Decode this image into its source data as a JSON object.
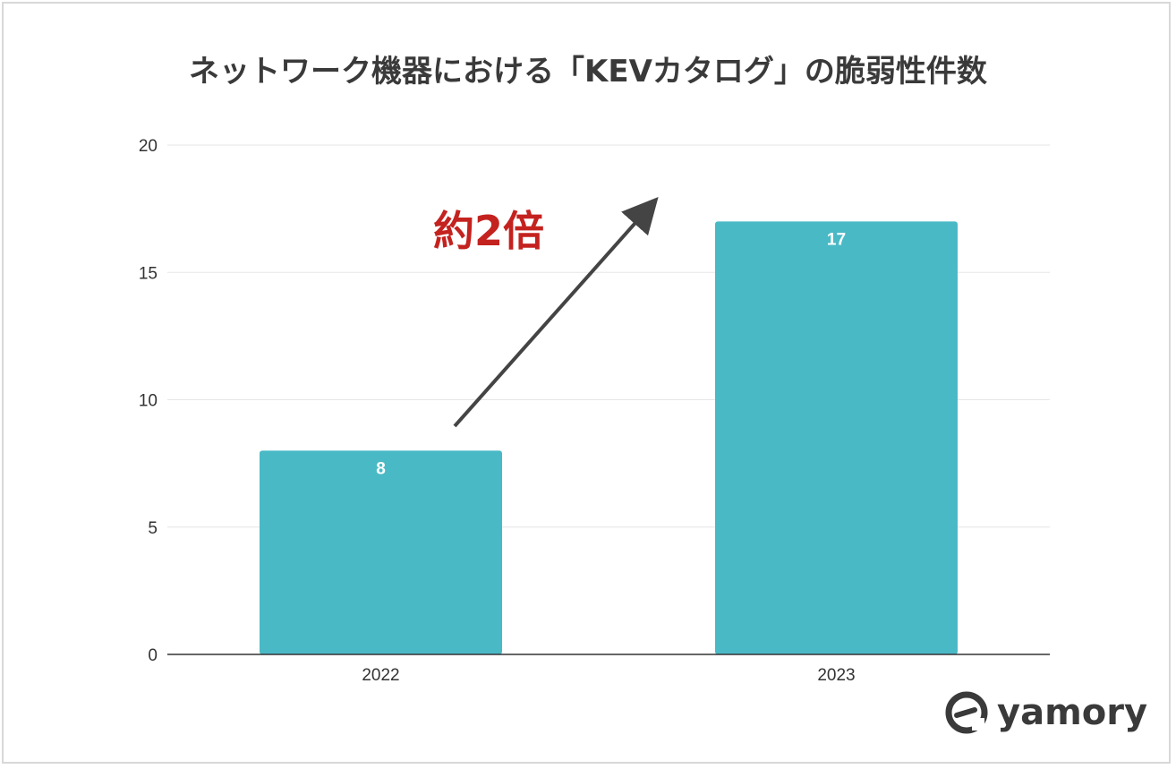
{
  "chart_data": {
    "type": "bar",
    "title": "ネットワーク機器における「KEVカタログ」の脆弱性件数",
    "categories": [
      "2022",
      "2023"
    ],
    "values": [
      8,
      17
    ],
    "ylim": [
      0,
      20
    ],
    "yticks": [
      0,
      5,
      10,
      15,
      20
    ],
    "xlabel": "",
    "ylabel": "",
    "grid": true,
    "bar_color": "#4ab9c6",
    "annotation": {
      "text": "約2倍",
      "color": "#c4221f"
    }
  },
  "brand": {
    "name": "yamory"
  }
}
